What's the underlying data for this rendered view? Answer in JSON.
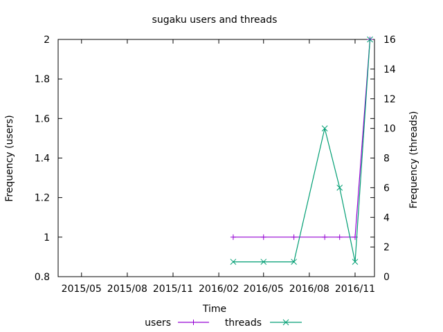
{
  "chart_data": {
    "type": "line",
    "title": "sugaku users and threads",
    "xlabel": "Time",
    "ylabel": "Frequency (users)",
    "y2label": "Frequency (threads)",
    "x_ticks": [
      "2015/05",
      "2015/08",
      "2015/11",
      "2016/02",
      "2016/05",
      "2016/08",
      "2016/11"
    ],
    "x_tick_dates": [
      "2015-05-01",
      "2015-08-01",
      "2015-11-01",
      "2016-02-01",
      "2016-05-01",
      "2016-08-01",
      "2016-11-01"
    ],
    "xlim": [
      "2015-03-15",
      "2016-12-10"
    ],
    "ylim": [
      0.8,
      2
    ],
    "y_ticks": [
      0.8,
      1,
      1.2,
      1.4,
      1.6,
      1.8,
      2
    ],
    "y_tick_labels": [
      "0.8",
      "1",
      "1.2",
      "1.4",
      "1.6",
      "1.8",
      "2"
    ],
    "y2lim": [
      0,
      16
    ],
    "y2_ticks": [
      0,
      2,
      4,
      6,
      8,
      10,
      12,
      14,
      16
    ],
    "y2_tick_labels": [
      "0",
      "2",
      "4",
      "6",
      "8",
      "10",
      "12",
      "14",
      "16"
    ],
    "legend_position": "bottom",
    "series": [
      {
        "name": "users",
        "axis": "y",
        "color": "#9400d3",
        "marker": "plus",
        "x": [
          "2016-03-01",
          "2016-05-01",
          "2016-07-01",
          "2016-09-01",
          "2016-10-01",
          "2016-11-01",
          "2016-12-01"
        ],
        "values": [
          1,
          1,
          1,
          1,
          1,
          1,
          2
        ]
      },
      {
        "name": "threads",
        "axis": "y2",
        "color": "#009e73",
        "marker": "cross",
        "x": [
          "2016-03-01",
          "2016-05-01",
          "2016-07-01",
          "2016-09-01",
          "2016-10-01",
          "2016-11-01",
          "2016-12-01"
        ],
        "values": [
          1,
          1,
          1,
          10,
          6,
          1,
          16
        ]
      }
    ]
  }
}
